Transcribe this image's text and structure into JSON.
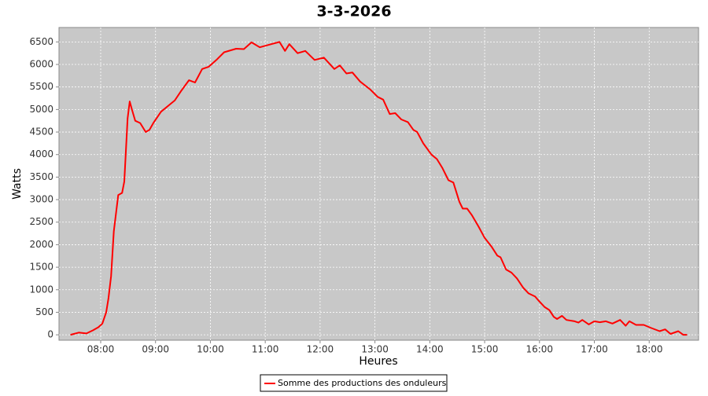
{
  "chart_data": {
    "type": "line",
    "title": "3-3-2026",
    "xlabel": "Heures",
    "ylabel": "Watts",
    "x": [
      7.45,
      7.6,
      7.74,
      7.86,
      7.96,
      8.03,
      8.1,
      8.14,
      8.19,
      8.24,
      8.32,
      8.39,
      8.43,
      8.49,
      8.53,
      8.57,
      8.63,
      8.72,
      8.82,
      8.89,
      8.96,
      9.1,
      9.25,
      9.35,
      9.46,
      9.61,
      9.72,
      9.85,
      9.97,
      10.11,
      10.25,
      10.47,
      10.61,
      10.75,
      10.9,
      11.11,
      11.26,
      11.36,
      11.44,
      11.59,
      11.73,
      11.9,
      12.07,
      12.26,
      12.36,
      12.48,
      12.59,
      12.73,
      12.91,
      13.05,
      13.15,
      13.27,
      13.37,
      13.48,
      13.6,
      13.7,
      13.77,
      13.88,
      14.03,
      14.13,
      14.23,
      14.34,
      14.43,
      14.54,
      14.6,
      14.68,
      14.77,
      14.89,
      15.0,
      15.13,
      15.23,
      15.29,
      15.39,
      15.49,
      15.59,
      15.7,
      15.8,
      15.92,
      15.99,
      16.09,
      16.18,
      16.26,
      16.32,
      16.41,
      16.49,
      16.64,
      16.71,
      16.78,
      16.9,
      17.0,
      17.1,
      17.21,
      17.33,
      17.47,
      17.57,
      17.64,
      17.76,
      17.9,
      18.04,
      18.19,
      18.29,
      18.39,
      18.53,
      18.62,
      18.69
    ],
    "series": [
      {
        "name": "Somme des productions des onduleurs",
        "color": "#ff0000",
        "values": [
          0,
          50,
          30,
          100,
          170,
          250,
          500,
          800,
          1300,
          2300,
          3100,
          3150,
          3400,
          4800,
          5180,
          5000,
          4750,
          4700,
          4500,
          4550,
          4700,
          4950,
          5100,
          5200,
          5400,
          5650,
          5600,
          5900,
          5950,
          6100,
          6270,
          6350,
          6340,
          6490,
          6380,
          6450,
          6500,
          6300,
          6450,
          6250,
          6300,
          6100,
          6150,
          5900,
          5980,
          5800,
          5820,
          5620,
          5450,
          5280,
          5220,
          4900,
          4920,
          4780,
          4720,
          4550,
          4500,
          4250,
          4000,
          3900,
          3700,
          3430,
          3380,
          2950,
          2800,
          2800,
          2650,
          2400,
          2150,
          1950,
          1760,
          1720,
          1450,
          1380,
          1250,
          1050,
          920,
          850,
          750,
          620,
          550,
          400,
          350,
          420,
          330,
          300,
          270,
          330,
          230,
          300,
          280,
          300,
          250,
          330,
          200,
          300,
          220,
          220,
          150,
          80,
          120,
          20,
          80,
          0,
          0
        ]
      }
    ],
    "xlim": [
      7.24,
      18.9
    ],
    "ylim": [
      -120,
      6820
    ],
    "xticks": [
      {
        "value": 8,
        "label": "08:00"
      },
      {
        "value": 9,
        "label": "09:00"
      },
      {
        "value": 10,
        "label": "10:00"
      },
      {
        "value": 11,
        "label": "11:00"
      },
      {
        "value": 12,
        "label": "12:00"
      },
      {
        "value": 13,
        "label": "13:00"
      },
      {
        "value": 14,
        "label": "14:00"
      },
      {
        "value": 15,
        "label": "15:00"
      },
      {
        "value": 16,
        "label": "16:00"
      },
      {
        "value": 17,
        "label": "17:00"
      },
      {
        "value": 18,
        "label": "18:00"
      }
    ],
    "yticks": [
      0,
      500,
      1000,
      1500,
      2000,
      2500,
      3000,
      3500,
      4000,
      4500,
      5000,
      5500,
      6000,
      6500
    ],
    "grid": true,
    "legend": "bottom"
  }
}
